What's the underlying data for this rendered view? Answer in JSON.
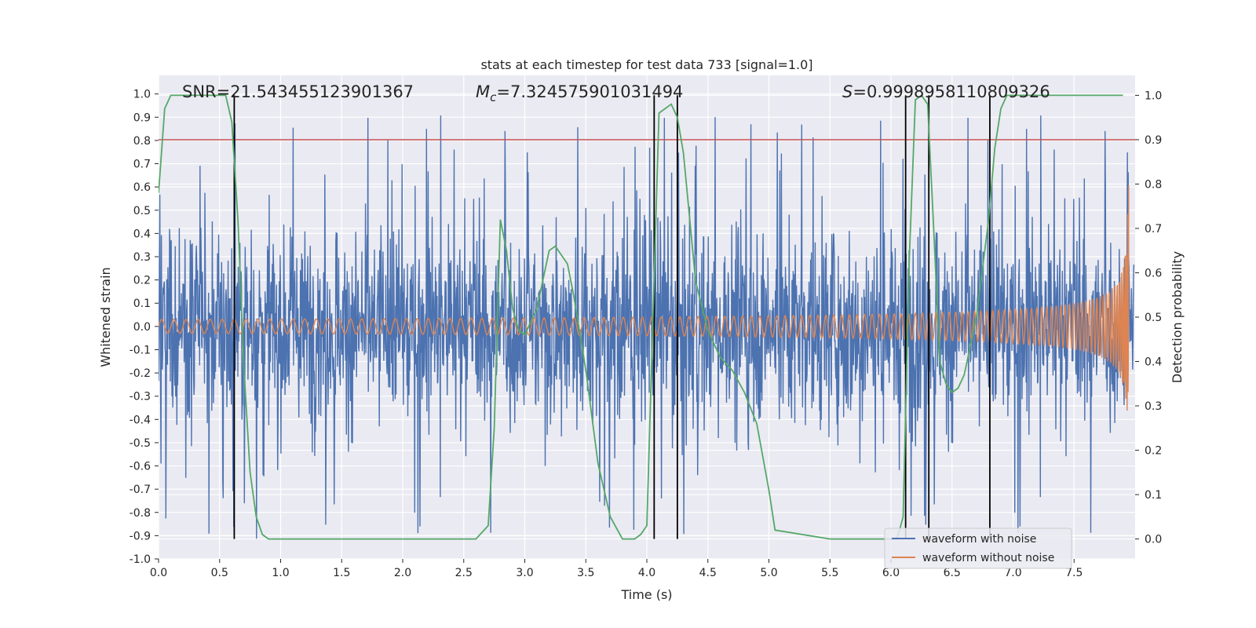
{
  "chart_data": {
    "type": "line",
    "title": "stats at each timestep for test data 733 [signal=1.0]",
    "xlabel": "Time (s)",
    "ylabel": "Whitened strain",
    "y2label": "Detection probability",
    "xlim": [
      0.0,
      8.0
    ],
    "ylim": [
      -1.0,
      1.08
    ],
    "y2lim": [
      -0.045,
      1.045
    ],
    "xticks": [
      "0.0",
      "0.5",
      "1.0",
      "1.5",
      "2.0",
      "2.5",
      "3.0",
      "3.5",
      "4.0",
      "4.5",
      "5.0",
      "5.5",
      "6.0",
      "6.5",
      "7.0",
      "7.5"
    ],
    "yticks": [
      "-1.0",
      "-0.9",
      "-0.8",
      "-0.7",
      "-0.6",
      "-0.5",
      "-0.4",
      "-0.3",
      "-0.2",
      "-0.1",
      "0.0",
      "0.1",
      "0.2",
      "0.3",
      "0.4",
      "0.5",
      "0.6",
      "0.7",
      "0.8",
      "0.9",
      "1.0"
    ],
    "y2ticks": [
      "0.0",
      "0.1",
      "0.2",
      "0.3",
      "0.4",
      "0.5",
      "0.6",
      "0.7",
      "0.8",
      "0.9",
      "1.0"
    ],
    "grid": true,
    "legend_position": "lower-right",
    "annotations": {
      "snr": "SNR=21.543455123901367",
      "mc_symbol": "M",
      "mc_sub": "c",
      "mc_value": "=7.324575901031494",
      "s_symbol": "S",
      "s_value": "=0.9998958110809326"
    },
    "threshold": {
      "value": 0.9,
      "axis": "right",
      "color": "#c44e52"
    },
    "detection_boundaries_s": [
      0.62,
      4.06,
      4.25,
      6.12,
      6.31,
      6.81
    ],
    "series": [
      {
        "name": "waveform with noise",
        "color": "#4c72b0",
        "axis": "left",
        "noise_envelope": {
          "typical_abs": 0.38,
          "max_abs": 0.92,
          "min": -0.92
        }
      },
      {
        "name": "waveform without noise",
        "color": "#dd8452",
        "axis": "left",
        "chirp": {
          "amp_start": 0.03,
          "amp_end": 0.68,
          "t_coalesce": 7.95
        }
      },
      {
        "name": "Detection probability",
        "color": "#55a868",
        "axis": "right",
        "x": [
          0.0,
          0.05,
          0.1,
          0.15,
          0.2,
          0.3,
          0.4,
          0.5,
          0.55,
          0.6,
          0.65,
          0.7,
          0.75,
          0.8,
          0.85,
          0.9,
          1.0,
          1.2,
          1.5,
          2.0,
          2.5,
          2.6,
          2.7,
          2.75,
          2.8,
          2.85,
          2.9,
          2.95,
          3.0,
          3.1,
          3.2,
          3.25,
          3.3,
          3.35,
          3.4,
          3.5,
          3.6,
          3.7,
          3.8,
          3.9,
          3.95,
          4.0,
          4.05,
          4.1,
          4.15,
          4.2,
          4.25,
          4.3,
          4.4,
          4.5,
          4.6,
          4.7,
          4.8,
          4.9,
          5.0,
          5.05,
          5.5,
          6.0,
          6.05,
          6.1,
          6.15,
          6.2,
          6.25,
          6.3,
          6.35,
          6.4,
          6.45,
          6.5,
          6.55,
          6.6,
          6.7,
          6.8,
          6.85,
          6.9,
          6.95,
          7.0,
          7.2,
          7.5,
          7.9
        ],
        "values": [
          0.78,
          0.97,
          1.0,
          1.0,
          1.0,
          1.0,
          1.0,
          1.0,
          1.0,
          0.94,
          0.72,
          0.38,
          0.15,
          0.05,
          0.01,
          0.0,
          0.0,
          0.0,
          0.0,
          0.0,
          0.0,
          0.0,
          0.03,
          0.25,
          0.72,
          0.65,
          0.52,
          0.47,
          0.46,
          0.52,
          0.65,
          0.66,
          0.64,
          0.62,
          0.55,
          0.38,
          0.17,
          0.05,
          0.0,
          0.0,
          0.01,
          0.03,
          0.5,
          0.96,
          0.97,
          0.98,
          0.95,
          0.87,
          0.58,
          0.47,
          0.41,
          0.38,
          0.33,
          0.26,
          0.11,
          0.02,
          0.0,
          0.0,
          0.0,
          0.05,
          0.63,
          0.99,
          1.0,
          0.98,
          0.7,
          0.4,
          0.35,
          0.33,
          0.34,
          0.37,
          0.5,
          0.72,
          0.88,
          0.97,
          1.0,
          1.0,
          1.0,
          1.0,
          1.0
        ]
      }
    ]
  }
}
